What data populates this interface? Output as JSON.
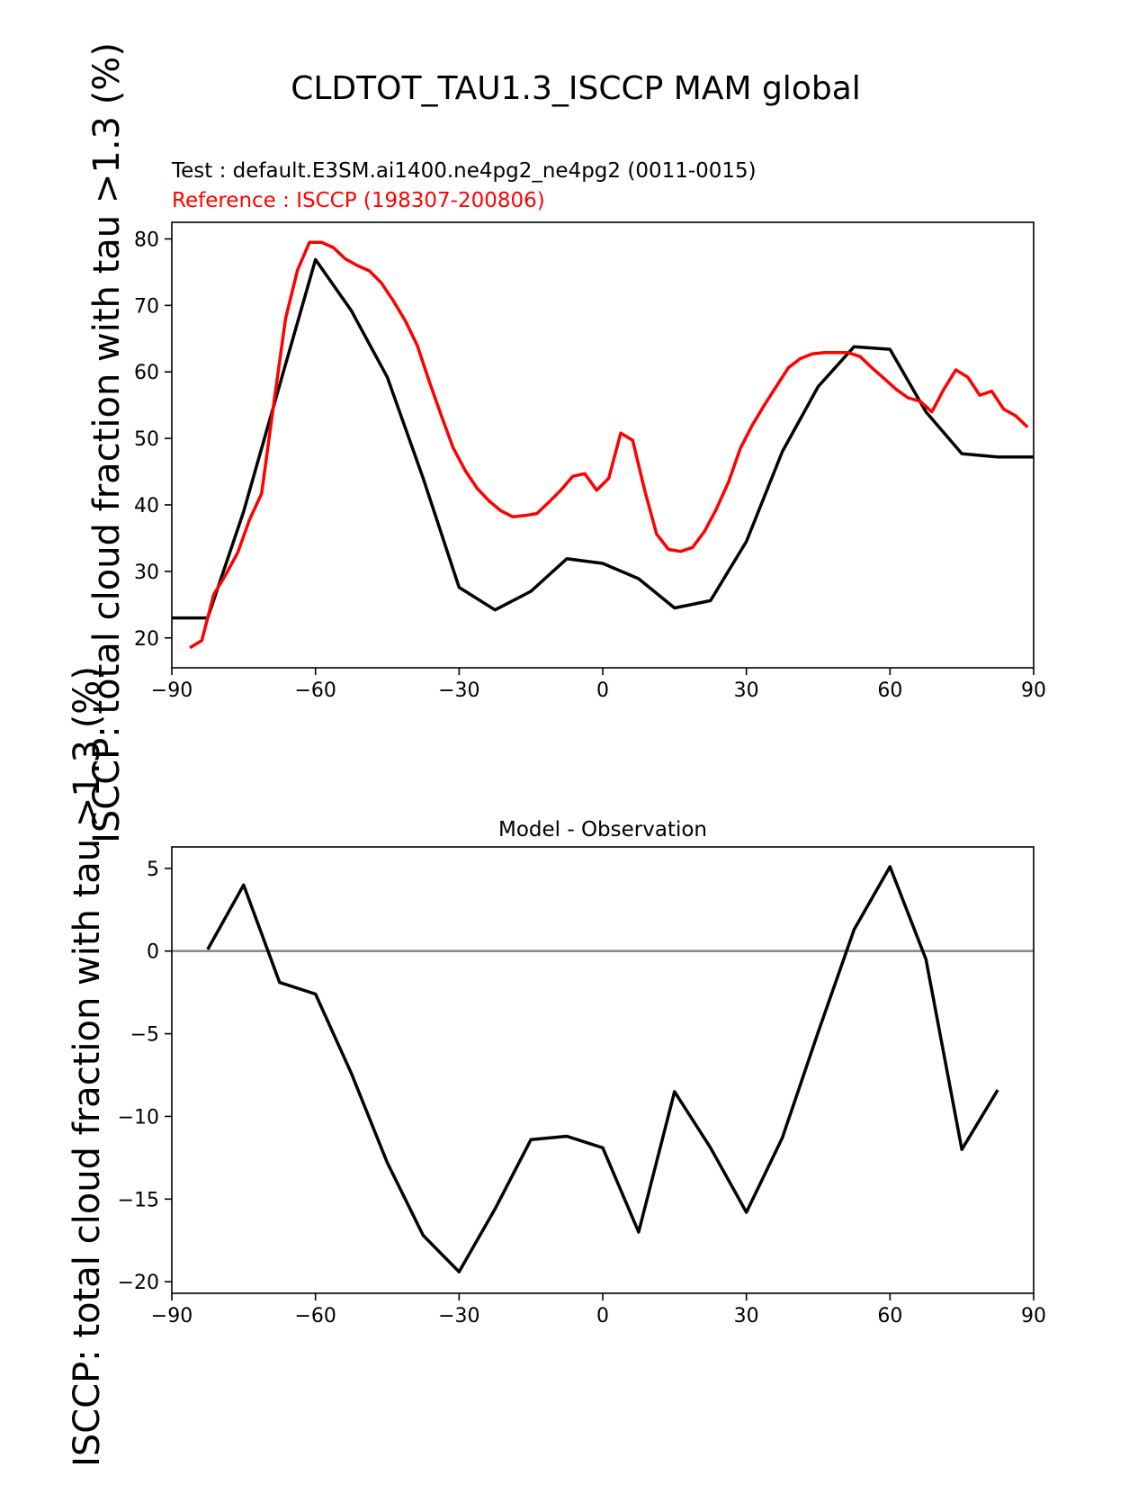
{
  "figure": {
    "title": "CLDTOT_TAU1.3_ISCCP MAM global",
    "ylabel_top": "ISCCP: total cloud fraction with tau >1.3 (%)",
    "ylabel_bottom": "ISCCP: total cloud fraction with tau >1.3 (%)",
    "test_label": "Test : default.E3SM.ai1400.ne4pg2_ne4pg2 (0011-0015)",
    "reference_label": "Reference : ISCCP (198307-200806)",
    "colors": {
      "test": "#000000",
      "reference": "#ff0000",
      "zero_line": "#808080"
    }
  },
  "chart_data": [
    {
      "type": "line",
      "xlim": [
        -90,
        90
      ],
      "ylim": [
        15.5,
        82.5
      ],
      "xticks": [
        -90,
        -60,
        -30,
        0,
        30,
        60,
        90
      ],
      "yticks": [
        20,
        30,
        40,
        50,
        60,
        70,
        80
      ],
      "series": [
        {
          "key": "test",
          "x": [
            -90,
            -82.5,
            -75,
            -67.5,
            -60,
            -52.5,
            -45,
            -37.5,
            -30,
            -22.5,
            -15,
            -7.5,
            0,
            7.5,
            15,
            22.5,
            30,
            37.5,
            45,
            52.5,
            60,
            67.5,
            75,
            82.5,
            90
          ],
          "y": [
            23.0,
            23.0,
            39.0,
            58.0,
            76.9,
            69.2,
            59.2,
            44.0,
            27.6,
            24.2,
            27.0,
            31.9,
            31.2,
            28.9,
            24.5,
            25.6,
            34.5,
            48.0,
            57.8,
            63.8,
            63.4,
            54.0,
            47.7,
            47.2,
            47.2
          ]
        },
        {
          "key": "reference",
          "x": [
            -86.25,
            -83.75,
            -81.25,
            -78.75,
            -76.25,
            -73.75,
            -71.25,
            -68.75,
            -66.25,
            -63.75,
            -61.25,
            -58.75,
            -56.25,
            -53.75,
            -51.25,
            -48.75,
            -46.25,
            -43.75,
            -41.25,
            -38.75,
            -36.25,
            -33.75,
            -31.25,
            -28.75,
            -26.25,
            -23.75,
            -21.25,
            -18.75,
            -16.25,
            -13.75,
            -11.25,
            -8.75,
            -6.25,
            -3.75,
            -1.25,
            1.25,
            3.75,
            6.25,
            8.75,
            11.25,
            13.75,
            16.25,
            18.75,
            21.25,
            23.75,
            26.25,
            28.75,
            31.25,
            33.75,
            36.25,
            38.75,
            41.25,
            43.75,
            46.25,
            48.75,
            51.25,
            53.75,
            56.25,
            58.75,
            61.25,
            63.75,
            66.25,
            68.75,
            71.25,
            73.75,
            76.25,
            78.75,
            81.25,
            83.75,
            86.25,
            88.75
          ],
          "y": [
            18.5,
            19.6,
            26.5,
            29.5,
            32.8,
            37.8,
            41.7,
            55.0,
            68.0,
            75.3,
            79.5,
            79.5,
            78.7,
            77.0,
            76.0,
            75.2,
            73.4,
            70.7,
            67.7,
            64.0,
            58.6,
            53.5,
            48.6,
            45.2,
            42.5,
            40.6,
            39.1,
            38.2,
            38.4,
            38.7,
            40.4,
            42.2,
            44.3,
            44.7,
            42.2,
            44.0,
            50.8,
            49.7,
            42.2,
            35.6,
            33.3,
            33.0,
            33.6,
            36.0,
            39.4,
            43.4,
            48.5,
            52.0,
            55.0,
            57.8,
            60.6,
            62.0,
            62.7,
            62.9,
            62.9,
            62.9,
            62.3,
            60.6,
            59.0,
            57.4,
            56.1,
            55.6,
            54.0,
            57.4,
            60.3,
            59.2,
            56.5,
            57.1,
            54.4,
            53.4,
            51.7
          ]
        }
      ]
    },
    {
      "type": "line",
      "title": "Model - Observation",
      "xlim": [
        -90,
        90
      ],
      "ylim": [
        -20.7,
        6.3
      ],
      "xticks": [
        -90,
        -60,
        -30,
        0,
        30,
        60,
        90
      ],
      "yticks": [
        -20,
        -15,
        -10,
        -5,
        0,
        5
      ],
      "series": [
        {
          "key": "difference",
          "x": [
            -82.5,
            -75,
            -67.5,
            -60,
            -52.5,
            -45,
            -37.5,
            -30,
            -22.5,
            -15,
            -7.5,
            0,
            7.5,
            15,
            22.5,
            30,
            37.5,
            45,
            52.5,
            60,
            67.5,
            75,
            82.5
          ],
          "y": [
            0.1,
            4.0,
            -1.9,
            -2.6,
            -7.4,
            -12.8,
            -17.2,
            -19.4,
            -15.6,
            -11.4,
            -11.2,
            -11.9,
            -17.0,
            -8.5,
            -11.9,
            -15.8,
            -11.3,
            -4.9,
            1.3,
            5.1,
            -0.5,
            -12.0,
            -8.4
          ]
        }
      ]
    }
  ]
}
